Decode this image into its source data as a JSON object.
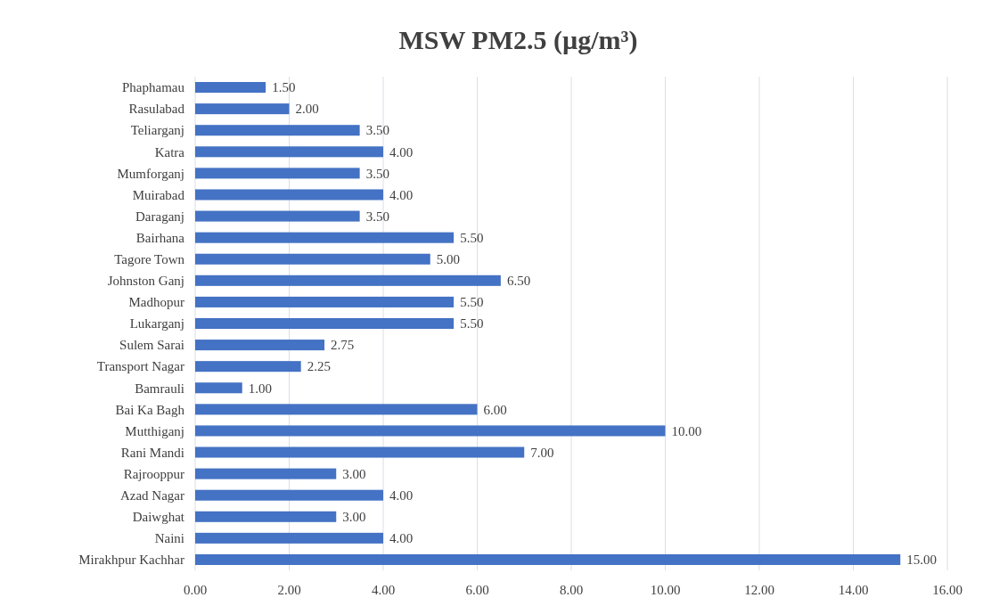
{
  "chart_data": {
    "type": "bar",
    "orientation": "horizontal",
    "title": "MSW PM2.5 (µg/m³)",
    "categories": [
      "Phaphamau",
      "Rasulabad",
      "Teliarganj",
      "Katra",
      "Mumforganj",
      "Muirabad",
      "Daraganj",
      "Bairhana",
      "Tagore Town",
      "Johnston Ganj",
      "Madhopur",
      "Lukarganj",
      "Sulem Sarai",
      "Transport Nagar",
      "Bamrauli",
      "Bai Ka Bagh",
      "Mutthiganj",
      "Rani Mandi",
      "Rajrooppur",
      "Azad Nagar",
      "Daiwghat",
      "Naini",
      "Mirakhpur Kachhar"
    ],
    "values": [
      1.5,
      2,
      3.5,
      4,
      3.5,
      4,
      3.5,
      5.5,
      5,
      6.5,
      5.5,
      5.5,
      2.75,
      2.25,
      1,
      6,
      10,
      7,
      3,
      4,
      3,
      4,
      15
    ],
    "value_labels": [
      "1.50",
      "2.00",
      "3.50",
      "4.00",
      "3.50",
      "4.00",
      "3.50",
      "5.50",
      "5.00",
      "6.50",
      "5.50",
      "5.50",
      "2.75",
      "2.25",
      "1.00",
      "6.00",
      "10.00",
      "7.00",
      "3.00",
      "4.00",
      "3.00",
      "4.00",
      "15.00"
    ],
    "color": "#4472c4",
    "xlim": [
      0,
      16
    ],
    "xticks": [
      {
        "value": 0,
        "label": "0.00"
      },
      {
        "value": 2,
        "label": "2.00"
      },
      {
        "value": 4,
        "label": "4.00"
      },
      {
        "value": 6,
        "label": "6.00"
      },
      {
        "value": 8,
        "label": "8.00"
      },
      {
        "value": 10,
        "label": "10.00"
      },
      {
        "value": 12,
        "label": "12.00"
      },
      {
        "value": 14,
        "label": "14.00"
      },
      {
        "value": 16,
        "label": "16.00"
      }
    ],
    "grid": "x"
  }
}
